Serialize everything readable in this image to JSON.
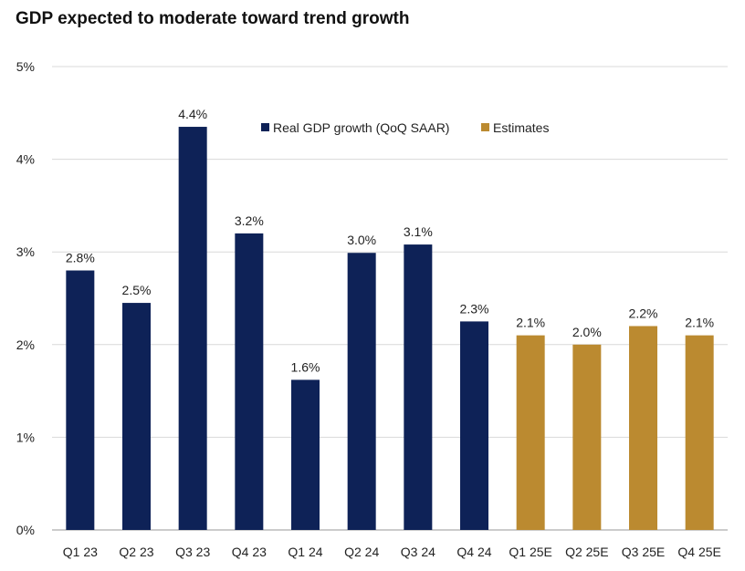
{
  "chart_data": {
    "type": "bar",
    "title": "GDP expected to moderate toward trend growth",
    "categories": [
      "Q1 23",
      "Q2 23",
      "Q3 23",
      "Q4 23",
      "Q1 24",
      "Q2 24",
      "Q3 24",
      "Q4 24",
      "Q1 25E",
      "Q2 25E",
      "Q3 25E",
      "Q4 25E"
    ],
    "values": [
      2.8,
      2.45,
      4.35,
      3.2,
      1.62,
      2.99,
      3.08,
      2.25,
      2.1,
      2.0,
      2.2,
      2.1
    ],
    "data_labels": [
      "2.8%",
      "2.5%",
      "4.4%",
      "3.2%",
      "1.6%",
      "3.0%",
      "3.1%",
      "2.3%",
      "2.1%",
      "2.0%",
      "2.2%",
      "2.1%"
    ],
    "series_type": [
      "actual",
      "actual",
      "actual",
      "actual",
      "actual",
      "actual",
      "actual",
      "actual",
      "estimate",
      "estimate",
      "estimate",
      "estimate"
    ],
    "yticks": [
      "0%",
      "1%",
      "2%",
      "3%",
      "4%",
      "5%"
    ],
    "ylim": [
      0,
      5
    ],
    "xlabel": "",
    "ylabel": "",
    "grid": true,
    "legend": {
      "placement": "top-center",
      "items": [
        {
          "name": "Real GDP growth (QoQ SAAR)",
          "color": "#0e2257"
        },
        {
          "name": "Estimates",
          "color": "#bb8a30"
        }
      ]
    },
    "colors": {
      "actual": "#0e2257",
      "estimate": "#bb8a30",
      "grid": "#d9d9d9",
      "axis": "#9a9a9a"
    }
  }
}
